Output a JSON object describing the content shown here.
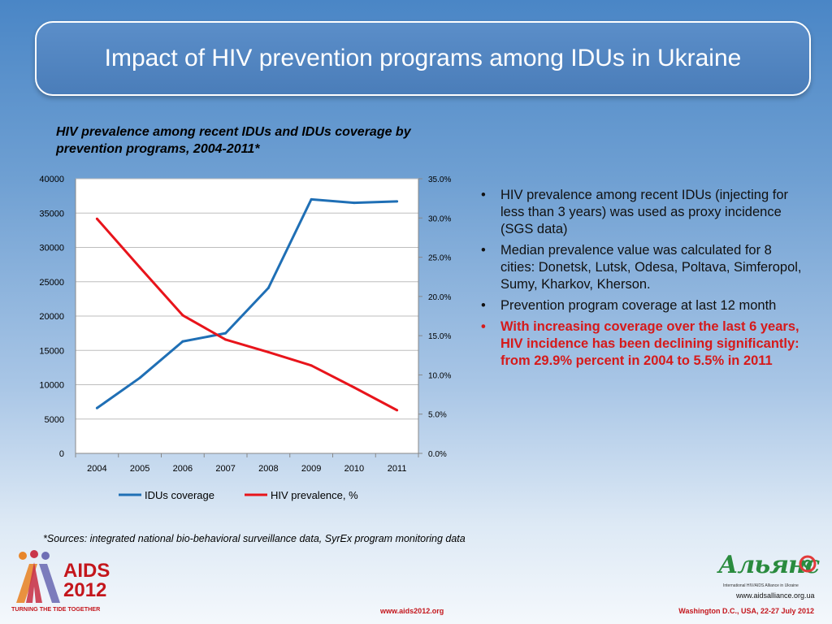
{
  "slide": {
    "title": "Impact of HIV prevention programs among IDUs in Ukraine",
    "chart_heading": "HIV prevalence among recent IDUs and IDUs coverage by prevention programs, 2004-2011*",
    "bullets": [
      "HIV prevalence among recent IDUs (injecting for less than 3 years) was used as proxy incidence (SGS data)",
      "Median prevalence value was calculated for 8 cities: Donetsk, Lutsk, Odesa, Poltava, Simferopol, Sumy, Kharkov, Kherson.",
      "Prevention program coverage at last 12 month",
      "With increasing coverage over the last 6 years,  HIV incidence has been declining significantly: from 29.9% percent in 2004 to 5.5% in 2011"
    ],
    "highlight_color": "#d61a1a",
    "sources": "*Sources: integrated national bio-behavioral surveillance data, SyrEx program monitoring data"
  },
  "footer": {
    "aids_logo": {
      "line1": "AIDS",
      "line2": "2012",
      "tagline": "TURNING THE TIDE TOGETHER"
    },
    "link": "www.aids2012.org",
    "event": "Washington D.C., USA, 22-27 July 2012",
    "alliance": {
      "name": "Альянс",
      "subtitle": "International HIV/AIDS Alliance in Ukraine",
      "url": "www.aidsalliance.org.ua"
    }
  },
  "chart_data": {
    "type": "line",
    "categories": [
      "2004",
      "2005",
      "2006",
      "2007",
      "2008",
      "2009",
      "2010",
      "2011"
    ],
    "series": [
      {
        "name": "IDUs coverage",
        "axis": "left",
        "color": "#1f6fb5",
        "values": [
          6600,
          11000,
          16300,
          17500,
          24100,
          37000,
          36500,
          36700
        ]
      },
      {
        "name": "HIV prevalence, %",
        "axis": "right",
        "color": "#e8141b",
        "values": [
          29.9,
          23.7,
          17.6,
          14.5,
          12.9,
          11.2,
          8.4,
          5.5
        ]
      }
    ],
    "y_left": {
      "min": 0,
      "max": 40000,
      "ticks": [
        "0",
        "5000",
        "10000",
        "15000",
        "20000",
        "25000",
        "30000",
        "35000",
        "40000"
      ]
    },
    "y_right": {
      "min": 0,
      "max": 35,
      "ticks": [
        "0.0%",
        "5.0%",
        "10.0%",
        "15.0%",
        "20.0%",
        "25.0%",
        "30.0%",
        "35.0%"
      ]
    },
    "grid": "horizontal",
    "legend": "bottom"
  }
}
